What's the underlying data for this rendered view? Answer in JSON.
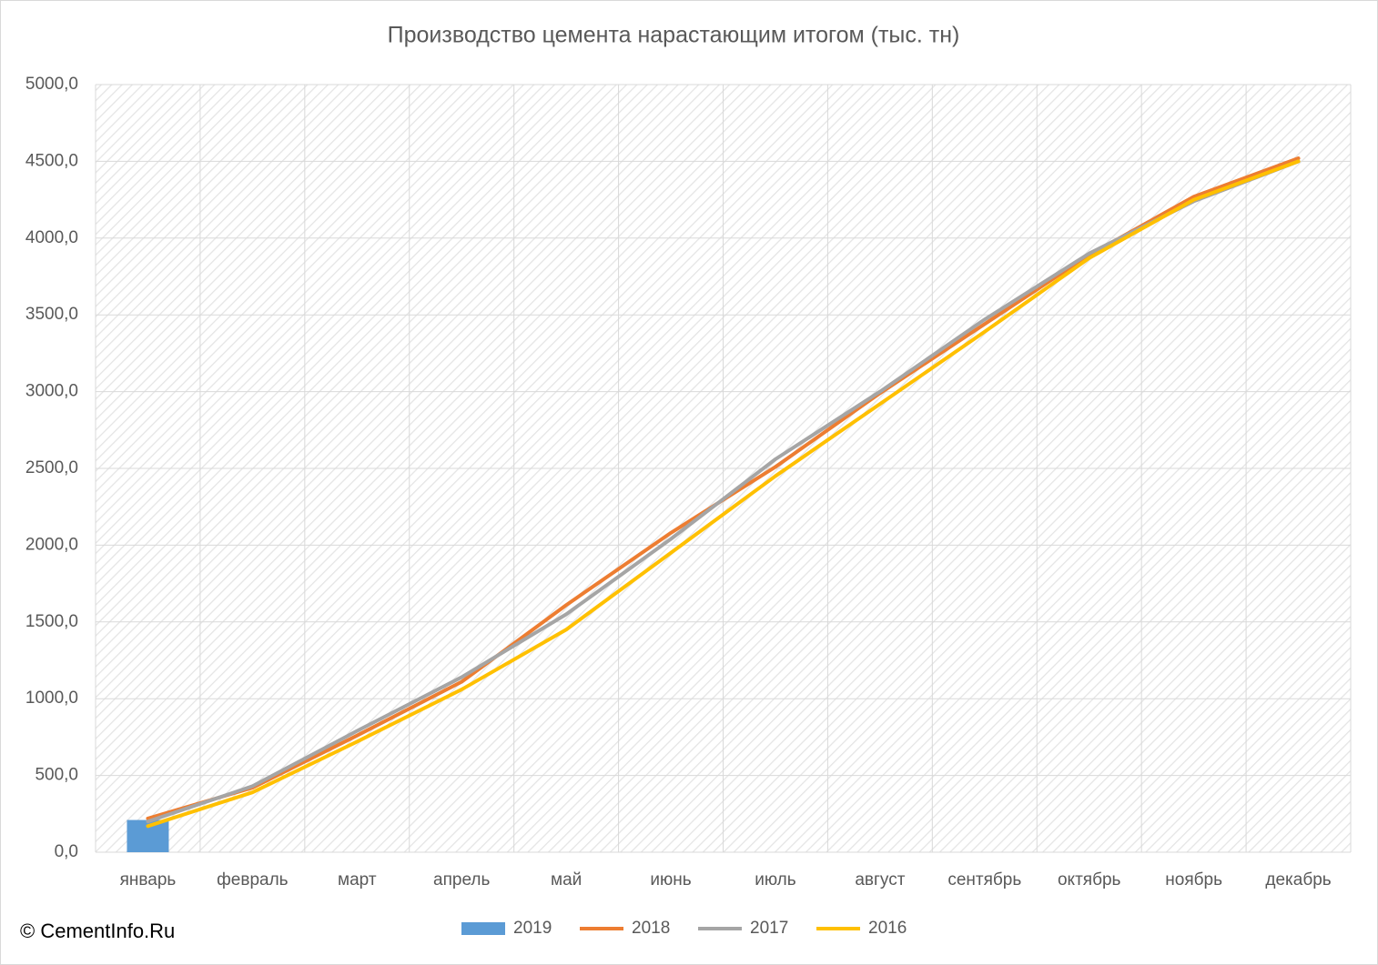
{
  "chart_data": {
    "type": "bar",
    "title": "Производство цемента нарастающим итогом (тыс. тн)",
    "credit": "© CementInfo.Ru",
    "categories": [
      "январь",
      "февраль",
      "март",
      "апрель",
      "май",
      "июнь",
      "июль",
      "август",
      "сентябрь",
      "октябрь",
      "ноябрь",
      "декабрь"
    ],
    "series": [
      {
        "name": "2019",
        "type": "bar",
        "color": "#5b9bd5",
        "values": [
          210,
          null,
          null,
          null,
          null,
          null,
          null,
          null,
          null,
          null,
          null,
          null
        ]
      },
      {
        "name": "2018",
        "type": "line",
        "color": "#ed7d31",
        "values": [
          220,
          420,
          760,
          1110,
          1610,
          2080,
          2510,
          2990,
          3440,
          3890,
          4270,
          4520
        ]
      },
      {
        "name": "2017",
        "type": "line",
        "color": "#a5a5a5",
        "values": [
          200,
          430,
          790,
          1140,
          1550,
          2040,
          2560,
          3000,
          3470,
          3900,
          4240,
          4500
        ]
      },
      {
        "name": "2016",
        "type": "line",
        "color": "#ffc000",
        "values": [
          170,
          390,
          720,
          1060,
          1450,
          1950,
          2450,
          2920,
          3390,
          3870,
          4250,
          4500
        ]
      }
    ],
    "ylim": [
      0,
      5000
    ],
    "yticks": [
      {
        "value": 0,
        "label": "0,0"
      },
      {
        "value": 500,
        "label": "500,0"
      },
      {
        "value": 1000,
        "label": "1000,0"
      },
      {
        "value": 1500,
        "label": "1500,0"
      },
      {
        "value": 2000,
        "label": "2000,0"
      },
      {
        "value": 2500,
        "label": "2500,0"
      },
      {
        "value": 3000,
        "label": "3000,0"
      },
      {
        "value": 3500,
        "label": "3500,0"
      },
      {
        "value": 4000,
        "label": "4000,0"
      },
      {
        "value": 4500,
        "label": "4500,0"
      },
      {
        "value": 5000,
        "label": "5000,0"
      }
    ],
    "grid": true,
    "legend": "bottom"
  }
}
